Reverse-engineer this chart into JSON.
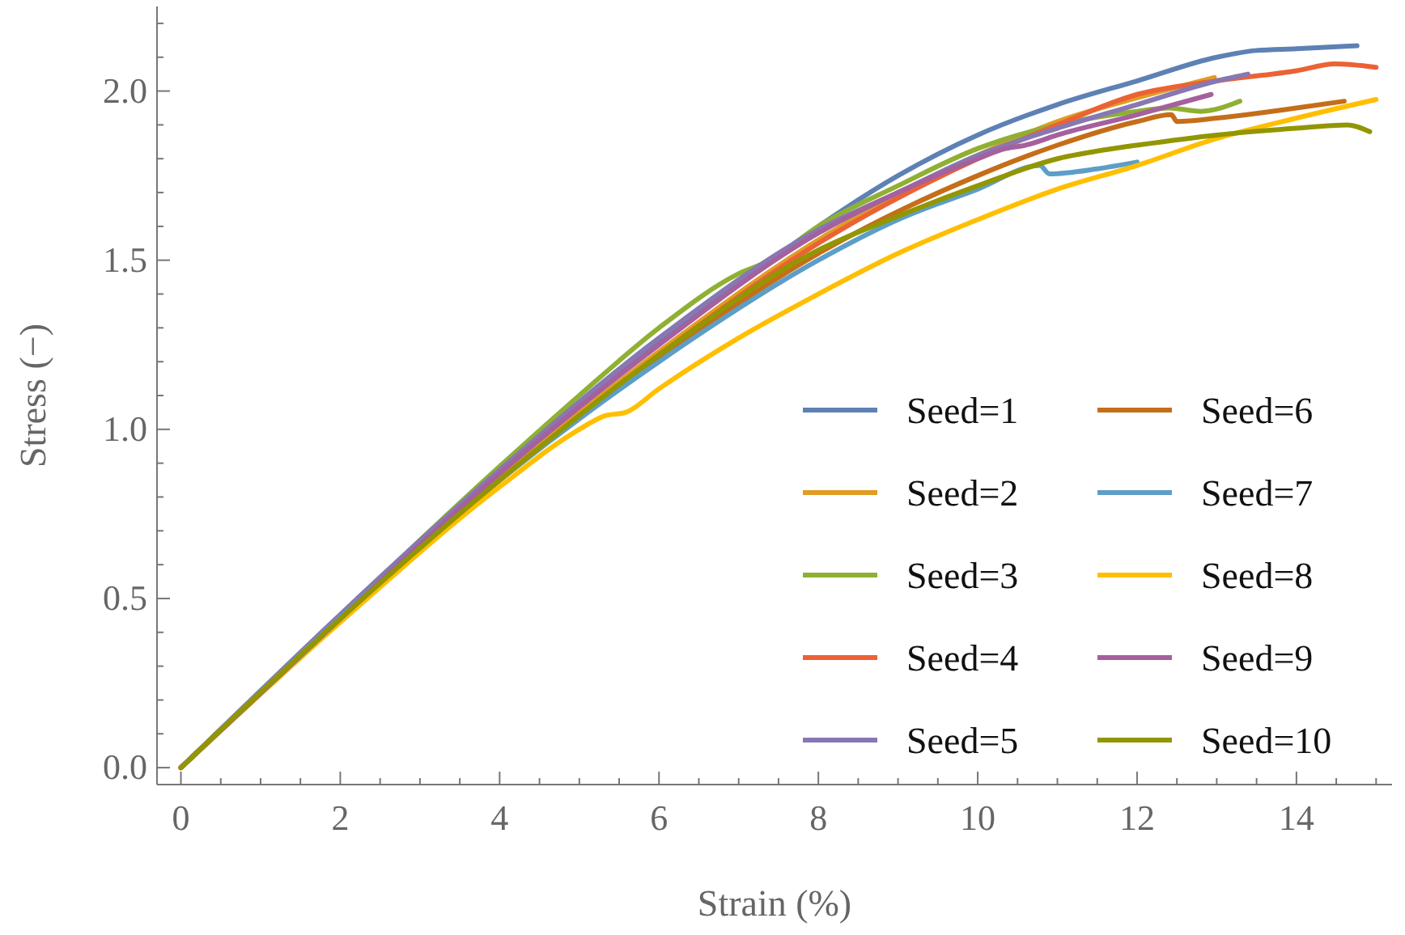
{
  "chart_data": {
    "type": "line",
    "xlabel": "Strain (%)",
    "ylabel": "Stress (−)",
    "xlim": [
      -0.3,
      15.2
    ],
    "ylim": [
      -0.05,
      2.25
    ],
    "xticks": [
      0,
      {
        "value": 0.5,
        "label": null
      },
      {
        "value": 1,
        "label": null
      },
      {
        "value": 1.5,
        "label": null
      },
      2,
      {
        "value": 2.5,
        "label": null
      },
      {
        "value": 3,
        "label": null
      },
      {
        "value": 3.5,
        "label": null
      },
      4,
      {
        "value": 4.5,
        "label": null
      },
      {
        "value": 5,
        "label": null
      },
      {
        "value": 5.5,
        "label": null
      },
      6,
      {
        "value": 6.5,
        "label": null
      },
      {
        "value": 7,
        "label": null
      },
      {
        "value": 7.5,
        "label": null
      },
      8,
      {
        "value": 8.5,
        "label": null
      },
      {
        "value": 9,
        "label": null
      },
      {
        "value": 9.5,
        "label": null
      },
      10,
      {
        "value": 10.5,
        "label": null
      },
      {
        "value": 11,
        "label": null
      },
      {
        "value": 11.5,
        "label": null
      },
      12,
      {
        "value": 12.5,
        "label": null
      },
      {
        "value": 13,
        "label": null
      },
      {
        "value": 13.5,
        "label": null
      },
      14,
      {
        "value": 14.5,
        "label": null
      },
      {
        "value": 15,
        "label": null
      }
    ],
    "yticks": [
      {
        "value": 0,
        "label": "0.0"
      },
      {
        "value": 0.1,
        "label": null
      },
      {
        "value": 0.2,
        "label": null
      },
      {
        "value": 0.3,
        "label": null
      },
      {
        "value": 0.4,
        "label": null
      },
      0.5,
      {
        "value": 0.6,
        "label": null
      },
      {
        "value": 0.7,
        "label": null
      },
      {
        "value": 0.8,
        "label": null
      },
      {
        "value": 0.9,
        "label": null
      },
      {
        "value": 1,
        "label": "1.0"
      },
      {
        "value": 1.1,
        "label": null
      },
      {
        "value": 1.2,
        "label": null
      },
      {
        "value": 1.3,
        "label": null
      },
      {
        "value": 1.4,
        "label": null
      },
      1.5,
      {
        "value": 1.6,
        "label": null
      },
      {
        "value": 1.7,
        "label": null
      },
      {
        "value": 1.8,
        "label": null
      },
      {
        "value": 1.9,
        "label": null
      },
      {
        "value": 2,
        "label": "2.0"
      },
      {
        "value": 2.1,
        "label": null
      },
      {
        "value": 2.2,
        "label": null
      }
    ],
    "grid": false,
    "legend": "bottom right",
    "line_style": "solid",
    "series": [
      {
        "name": "Seed=1",
        "color": "#5e81b5",
        "x": [
          0,
          2,
          4,
          5,
          6,
          7,
          8,
          9,
          10,
          11,
          12,
          13,
          13.5,
          14,
          14.76
        ],
        "values": [
          0,
          0.44,
          0.87,
          1.07,
          1.26,
          1.43,
          1.6,
          1.75,
          1.87,
          1.96,
          2.03,
          2.1,
          2.12,
          2.125,
          2.134
        ]
      },
      {
        "name": "Seed=2",
        "color": "#e19c24",
        "x": [
          0,
          2,
          4,
          6,
          8,
          10,
          11,
          12,
          12.97
        ],
        "values": [
          0,
          0.44,
          0.86,
          1.23,
          1.56,
          1.81,
          1.91,
          1.98,
          2.04
        ]
      },
      {
        "name": "Seed=3",
        "color": "#8fb032",
        "x": [
          0,
          2,
          4,
          5,
          6,
          7,
          7.4,
          8,
          9,
          10,
          11,
          12,
          12.4,
          12.8,
          13.29
        ],
        "values": [
          0,
          0.45,
          0.89,
          1.1,
          1.3,
          1.46,
          1.5,
          1.6,
          1.72,
          1.83,
          1.9,
          1.94,
          1.95,
          1.94,
          1.97
        ]
      },
      {
        "name": "Seed=4",
        "color": "#eb6235",
        "x": [
          0,
          2,
          4,
          6,
          8,
          10,
          11,
          12,
          13,
          14,
          14.48,
          15
        ],
        "values": [
          0,
          0.44,
          0.85,
          1.22,
          1.55,
          1.8,
          1.9,
          1.99,
          2.03,
          2.06,
          2.08,
          2.07
        ]
      },
      {
        "name": "Seed=5",
        "color": "#8778b3",
        "x": [
          0,
          4,
          6,
          8,
          9,
          10,
          11,
          12,
          13,
          13.39
        ],
        "values": [
          0,
          0.88,
          1.27,
          1.59,
          1.7,
          1.81,
          1.89,
          1.96,
          2.03,
          2.05
        ]
      },
      {
        "name": "Seed=6",
        "color": "#c56e1a",
        "x": [
          0,
          2,
          4,
          6,
          8,
          10,
          11,
          12,
          12.43,
          12.5,
          13,
          14,
          14.6
        ],
        "values": [
          0,
          0.44,
          0.85,
          1.21,
          1.52,
          1.75,
          1.84,
          1.91,
          1.93,
          1.91,
          1.92,
          1.95,
          1.97
        ]
      },
      {
        "name": "Seed=7",
        "color": "#5d9ec7",
        "x": [
          0,
          4,
          6,
          8,
          9,
          10,
          10.78,
          10.9,
          11.5,
          12
        ],
        "values": [
          0,
          0.85,
          1.2,
          1.5,
          1.62,
          1.71,
          1.78,
          1.755,
          1.77,
          1.79
        ]
      },
      {
        "name": "Seed=8",
        "color": "#ffbf00",
        "x": [
          0,
          2,
          4,
          5,
          5.32,
          5.58,
          6,
          7,
          8,
          9,
          10,
          11,
          12,
          13,
          14,
          15
        ],
        "values": [
          0,
          0.43,
          0.83,
          1.0,
          1.04,
          1.05,
          1.12,
          1.27,
          1.4,
          1.52,
          1.62,
          1.71,
          1.78,
          1.86,
          1.92,
          1.975
        ]
      },
      {
        "name": "Seed=9",
        "color": "#a5609d",
        "x": [
          0,
          2,
          4,
          6,
          8,
          9,
          10,
          10.35,
          10.6,
          11,
          12,
          12.93
        ],
        "values": [
          0,
          0.44,
          0.87,
          1.25,
          1.58,
          1.7,
          1.8,
          1.83,
          1.84,
          1.87,
          1.93,
          1.99
        ]
      },
      {
        "name": "Seed=10",
        "color": "#929600",
        "x": [
          0,
          2,
          4,
          6,
          8,
          9,
          10,
          11,
          11.7,
          12,
          13,
          14,
          14.64,
          14.92
        ],
        "values": [
          0,
          0.44,
          0.85,
          1.22,
          1.53,
          1.63,
          1.72,
          1.8,
          1.83,
          1.84,
          1.87,
          1.89,
          1.9,
          1.88
        ]
      }
    ]
  }
}
